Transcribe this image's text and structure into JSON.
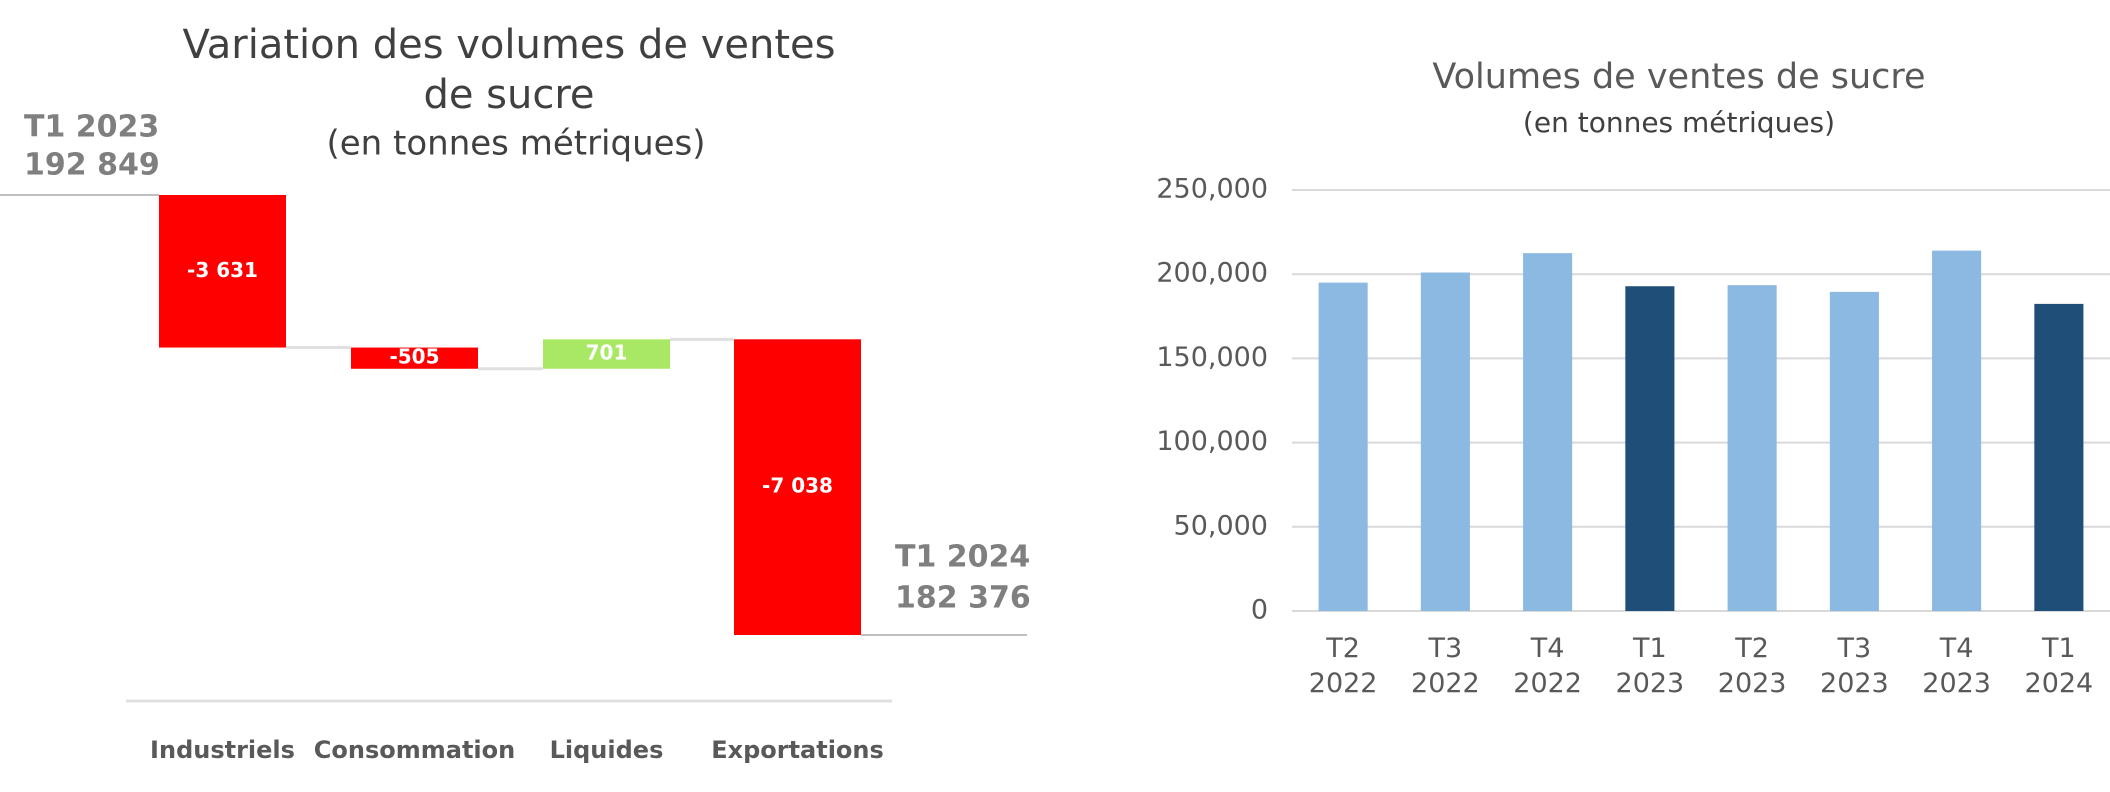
{
  "chart_data": [
    {
      "type": "waterfall",
      "title": "Variation des volumes de ventes de sucre",
      "subtitle": "(en tonnes métriques)",
      "start_label": "T1 2023",
      "start_value": 192849,
      "start_value_label": "192 849",
      "end_label": "T1 2024",
      "end_value": 182376,
      "end_value_label": "182 376",
      "categories": [
        "Industriels",
        "Consommation",
        "Liquides",
        "Exportations"
      ],
      "values": [
        -3631,
        -505,
        701,
        -7038
      ],
      "value_labels": [
        "-3 631",
        "-505",
        "701",
        "-7 038"
      ],
      "negative_color": "#ff0000",
      "positive_color": "#a9e865"
    },
    {
      "type": "bar",
      "title": "Volumes de ventes de sucre",
      "subtitle": "(en tonnes métriques)",
      "categories": [
        "T2 2022",
        "T3 2022",
        "T4 2022",
        "T1 2023",
        "T2 2023",
        "T3 2023",
        "T4 2023",
        "T1 2024"
      ],
      "values": [
        195000,
        201000,
        212500,
        192849,
        193500,
        189500,
        214000,
        182376
      ],
      "colors": [
        "#8cb9e1",
        "#8cb9e1",
        "#8cb9e1",
        "#1f4e79",
        "#8cb9e1",
        "#8cb9e1",
        "#8cb9e1",
        "#1f4e79"
      ],
      "ylim": [
        0,
        250000
      ],
      "yticks": [
        0,
        {
          "value": 50000,
          "label": "50,000"
        },
        {
          "value": 100000,
          "label": "100,000"
        },
        {
          "value": 150000,
          "label": "150,000"
        },
        {
          "value": 200000,
          "label": "200,000"
        },
        {
          "value": 250000,
          "label": "250,000"
        }
      ],
      "grid": true
    }
  ]
}
